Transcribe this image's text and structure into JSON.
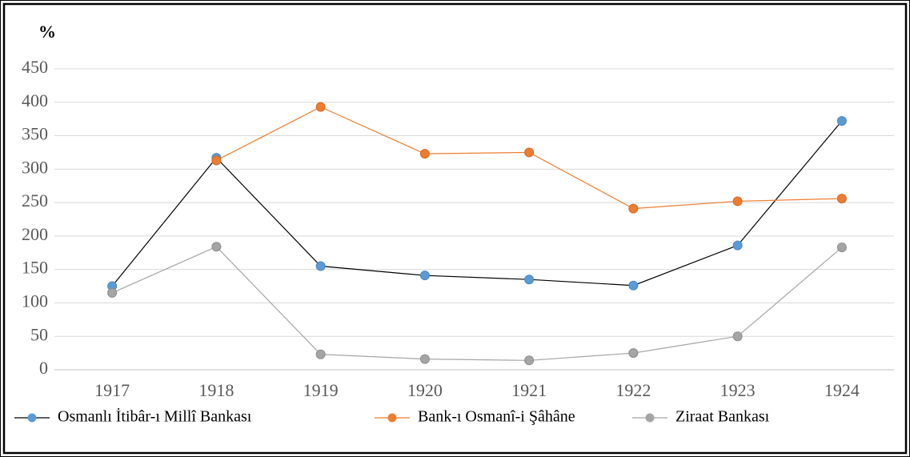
{
  "chart_data": {
    "type": "line",
    "title": "%",
    "categories": [
      "1917",
      "1918",
      "1919",
      "1920",
      "1921",
      "1922",
      "1923",
      "1924"
    ],
    "series": [
      {
        "name": "Osmanlı İtibâr-ı Millî Bankası",
        "color": "#5b9bd5",
        "line_color": "#000000",
        "values": [
          125,
          317,
          155,
          141,
          135,
          126,
          186,
          372
        ]
      },
      {
        "name": "Bank-ı Osmanî-i Şâhâne",
        "color": "#ed7d31",
        "line_color": "#ed7d31",
        "values": [
          null,
          313,
          393,
          323,
          325,
          241,
          252,
          256
        ]
      },
      {
        "name": "Ziraat Bankası",
        "color": "#a5a5a5",
        "line_color": "#a5a5a5",
        "values": [
          115,
          184,
          23,
          16,
          14,
          25,
          50,
          183
        ]
      }
    ],
    "ylim": [
      0,
      450
    ],
    "yticks": [
      0,
      50,
      100,
      150,
      200,
      250,
      300,
      350,
      400,
      450
    ],
    "grid": true,
    "legend": "bottom"
  }
}
